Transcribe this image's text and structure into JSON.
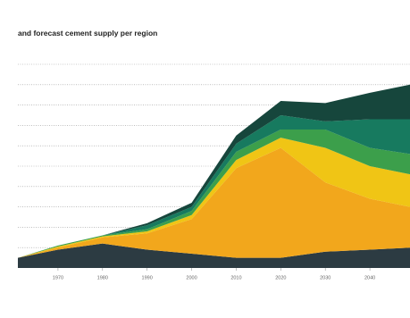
{
  "chart_data": {
    "type": "stacked-area",
    "title": "and forecast cement supply per region",
    "x": [
      1961,
      1970,
      1980,
      1990,
      2000,
      2010,
      2020,
      2030,
      2040,
      2049
    ],
    "xlim": [
      1961,
      2049
    ],
    "xticks": [
      1970,
      1980,
      1990,
      2000,
      2010,
      2020,
      2030,
      2040
    ],
    "ylim": [
      0,
      10
    ],
    "yticks": [
      1,
      2,
      3,
      4,
      5,
      6,
      7,
      8,
      9,
      10
    ],
    "grid": true,
    "series": [
      {
        "color": "#2c3b42",
        "values": [
          0.5,
          0.9,
          1.2,
          0.9,
          0.7,
          0.5,
          0.5,
          0.8,
          0.9,
          1.0
        ]
      },
      {
        "color": "#f2a71c",
        "values": [
          0,
          0.1,
          0.3,
          0.8,
          1.7,
          4.4,
          5.4,
          3.4,
          2.5,
          2.0
        ]
      },
      {
        "color": "#f0c515",
        "values": [
          0,
          0.05,
          0.05,
          0.1,
          0.2,
          0.4,
          0.5,
          1.7,
          1.6,
          1.6
        ]
      },
      {
        "color": "#3c9f4b",
        "values": [
          0,
          0.05,
          0.05,
          0.1,
          0.2,
          0.4,
          0.4,
          0.9,
          0.9,
          1.0
        ]
      },
      {
        "color": "#177a5f",
        "values": [
          0,
          0,
          0,
          0.2,
          0.2,
          0.4,
          0.7,
          0.4,
          1.4,
          1.7
        ]
      },
      {
        "color": "#16463c",
        "values": [
          0,
          0,
          0,
          0.1,
          0.2,
          0.4,
          0.7,
          0.9,
          1.3,
          1.7
        ]
      }
    ]
  }
}
